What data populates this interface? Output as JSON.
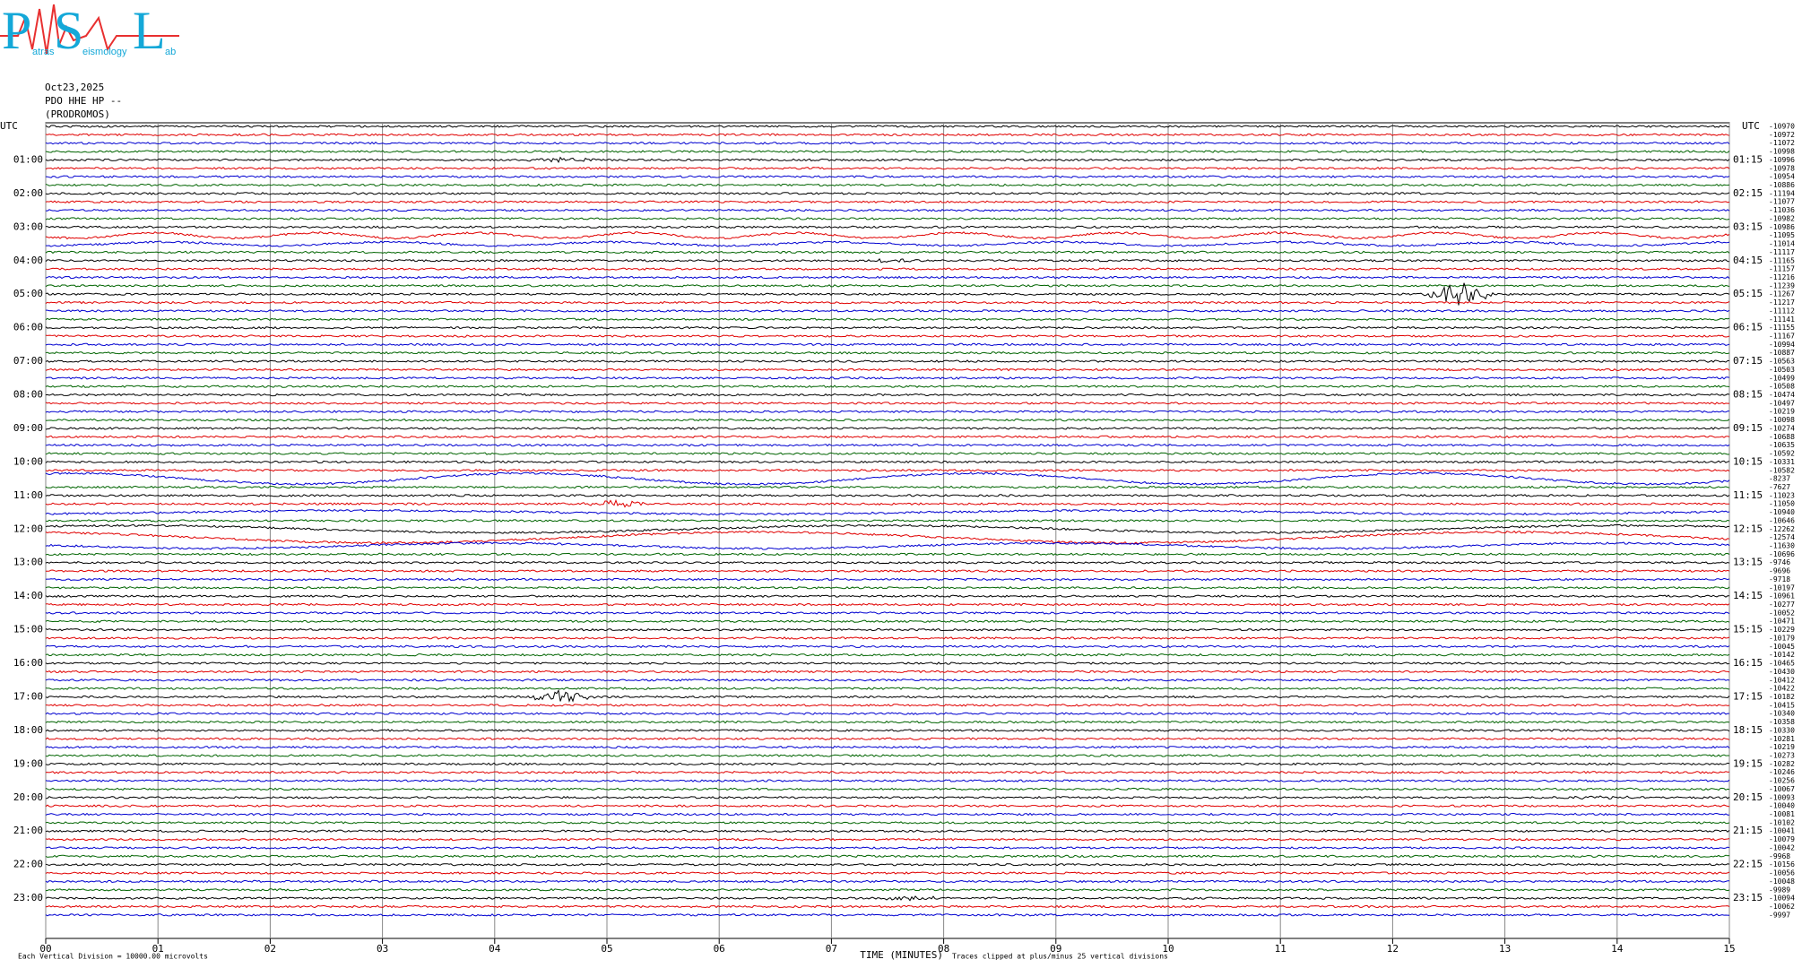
{
  "chart_data": {
    "type": "helicorder",
    "title": "Oct23,2025",
    "subtitle": "PDO HHE HP --",
    "station": "(PRODROMOS)",
    "x_label": "TIME (MINUTES)",
    "scale_note": "Each Vertical Division = 10000.00 microvolts",
    "clip_note": "Traces clipped at plus/minus 25 vertical divisions",
    "left_labels": [
      "UTC",
      "01:00",
      "02:00",
      "03:00",
      "04:00",
      "05:00",
      "06:00",
      "07:00",
      "08:00",
      "09:00",
      "10:00",
      "11:00",
      "12:00",
      "13:00",
      "14:00",
      "15:00",
      "16:00",
      "17:00",
      "18:00",
      "19:00",
      "20:00",
      "21:00",
      "22:00",
      "23:00"
    ],
    "right_labels": [
      "UTC",
      "01:15",
      "02:15",
      "03:15",
      "04:15",
      "05:15",
      "06:15",
      "07:15",
      "08:15",
      "09:15",
      "10:15",
      "11:15",
      "12:15",
      "13:15",
      "14:15",
      "15:15",
      "16:15",
      "17:15",
      "18:15",
      "19:15",
      "20:15",
      "21:15",
      "22:15",
      "23:15"
    ],
    "offsets": [
      -10970,
      -10972,
      -11072,
      -10998,
      -10996,
      -10978,
      -10954,
      -10886,
      -11194,
      -11077,
      -11036,
      -10982,
      -10986,
      -11095,
      -11014,
      -11117,
      -11165,
      -11157,
      -11216,
      -11239,
      -11267,
      -11217,
      -11112,
      -11141,
      -11155,
      -11167,
      -10994,
      -10887,
      -10563,
      -10503,
      -10499,
      -10508,
      -10474,
      -10497,
      -10219,
      -10098,
      -10274,
      -10688,
      -10635,
      -10592,
      -10331,
      -10582,
      -8237,
      -7627,
      -11023,
      -11050,
      -10940,
      -10646,
      -12262,
      -12574,
      -11630,
      -10696,
      -9746,
      -9696,
      -9718,
      -10197,
      -10961,
      -10277,
      -10052,
      -10471,
      -10229,
      -10179,
      -10045,
      -10142,
      -10465,
      -10430,
      -10412,
      -10422,
      -10182,
      -10415,
      -10340,
      -10358,
      -10330,
      -10281,
      -10219,
      -10273,
      -10282,
      -10246,
      -10256,
      -10067,
      -10093,
      -10040,
      -10081,
      -10102,
      -10041,
      -10079,
      -10042,
      -9968,
      -10156,
      -10056,
      -10048,
      -9989,
      -10094,
      -10062,
      -9997
    ],
    "colors": [
      "#000000",
      "#e00000",
      "#0000d0",
      "#006400"
    ],
    "xlim": [
      0,
      15
    ],
    "xticks": [
      {
        "value": 0,
        "label": "00"
      },
      {
        "value": 1,
        "label": "01"
      },
      {
        "value": 2,
        "label": "02"
      },
      {
        "value": 3,
        "label": "03"
      },
      {
        "value": 4,
        "label": "04"
      },
      {
        "value": 5,
        "label": "05"
      },
      {
        "value": 6,
        "label": "06"
      },
      {
        "value": 7,
        "label": "07"
      },
      {
        "value": 8,
        "label": "08"
      },
      {
        "value": 9,
        "label": "09"
      },
      10,
      11,
      12,
      13,
      14,
      15
    ],
    "grid": true
  },
  "logo": {
    "p": "P",
    "s": "S",
    "l": "L",
    "p_rest": "atras",
    "s_rest": "eismology",
    "l_rest": "ab"
  }
}
